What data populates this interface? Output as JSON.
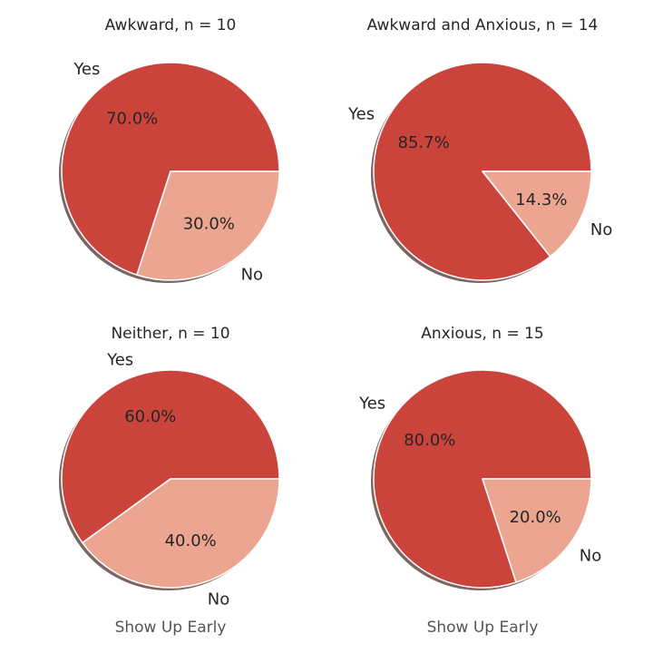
{
  "chart_data": [
    {
      "type": "pie",
      "title": "Awkward, n = 10",
      "xlabel": "",
      "labels": [
        "Yes",
        "No"
      ],
      "values": [
        70.0,
        30.0
      ],
      "value_labels": [
        "70.0%",
        "30.0%"
      ],
      "colors": [
        "#cb443c",
        "#eca590"
      ],
      "shadow": true
    },
    {
      "type": "pie",
      "title": "Awkward and Anxious, n = 14",
      "xlabel": "",
      "labels": [
        "Yes",
        "No"
      ],
      "values": [
        85.7,
        14.3
      ],
      "value_labels": [
        "85.7%",
        "14.3%"
      ],
      "colors": [
        "#cb443c",
        "#eca590"
      ],
      "shadow": true
    },
    {
      "type": "pie",
      "title": "Neither, n = 10",
      "xlabel": "Show Up Early",
      "labels": [
        "Yes",
        "No"
      ],
      "values": [
        60.0,
        40.0
      ],
      "value_labels": [
        "60.0%",
        "40.0%"
      ],
      "colors": [
        "#cb443c",
        "#eca590"
      ],
      "shadow": true
    },
    {
      "type": "pie",
      "title": "Anxious, n = 15",
      "xlabel": "Show Up Early",
      "labels": [
        "Yes",
        "No"
      ],
      "values": [
        80.0,
        20.0
      ],
      "value_labels": [
        "80.0%",
        "20.0%"
      ],
      "colors": [
        "#cb443c",
        "#eca590"
      ],
      "shadow": true
    }
  ]
}
